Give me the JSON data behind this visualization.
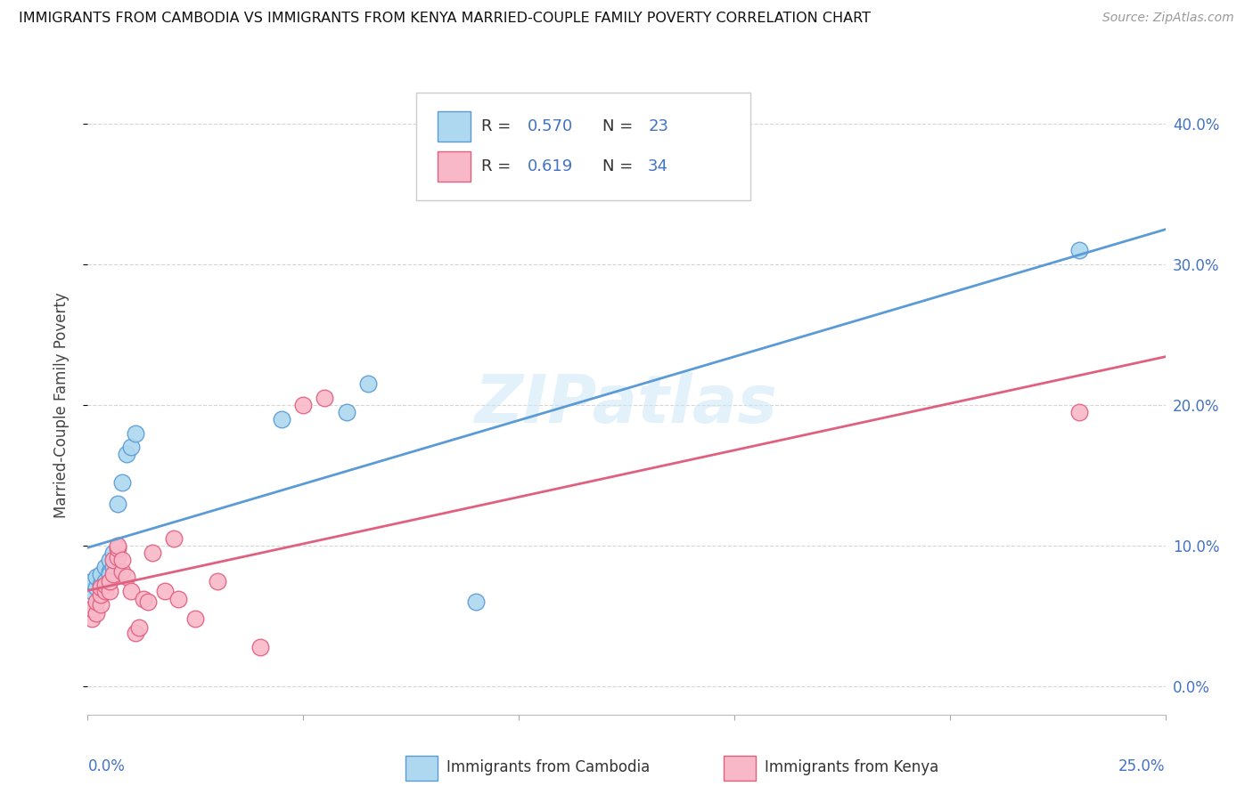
{
  "title": "IMMIGRANTS FROM CAMBODIA VS IMMIGRANTS FROM KENYA MARRIED-COUPLE FAMILY POVERTY CORRELATION CHART",
  "source": "Source: ZipAtlas.com",
  "ylabel": "Married-Couple Family Poverty",
  "watermark": "ZIPatlas",
  "legend_r1": "R = 0.570",
  "legend_n1": "N = 23",
  "legend_r2": "R = 0.619",
  "legend_n2": "N = 34",
  "legend_label1": "Immigrants from Cambodia",
  "legend_label2": "Immigrants from Kenya",
  "color_cambodia": "#add8f0",
  "color_kenya": "#f9b8c8",
  "color_line_cambodia": "#5b9bd5",
  "color_line_kenya": "#e06080",
  "color_text_blue": "#4472c4",
  "x_range": [
    0.0,
    0.25
  ],
  "y_range": [
    -0.02,
    0.42
  ],
  "ytick_vals": [
    0.0,
    0.1,
    0.2,
    0.3,
    0.4
  ],
  "ytick_labels": [
    "0.0%",
    "10.0%",
    "20.0%",
    "30.0%",
    "40.0%"
  ],
  "cambodia_x": [
    0.001,
    0.001,
    0.002,
    0.002,
    0.003,
    0.003,
    0.004,
    0.004,
    0.005,
    0.005,
    0.005,
    0.006,
    0.006,
    0.007,
    0.008,
    0.009,
    0.01,
    0.011,
    0.045,
    0.06,
    0.065,
    0.09,
    0.23
  ],
  "cambodia_y": [
    0.068,
    0.075,
    0.07,
    0.078,
    0.072,
    0.08,
    0.075,
    0.085,
    0.082,
    0.08,
    0.09,
    0.095,
    0.085,
    0.13,
    0.145,
    0.165,
    0.17,
    0.18,
    0.19,
    0.195,
    0.215,
    0.06,
    0.31
  ],
  "kenya_x": [
    0.001,
    0.001,
    0.002,
    0.002,
    0.003,
    0.003,
    0.003,
    0.004,
    0.004,
    0.005,
    0.005,
    0.006,
    0.006,
    0.007,
    0.007,
    0.007,
    0.008,
    0.008,
    0.009,
    0.01,
    0.011,
    0.012,
    0.013,
    0.014,
    0.015,
    0.018,
    0.02,
    0.021,
    0.025,
    0.03,
    0.04,
    0.05,
    0.055,
    0.23
  ],
  "kenya_y": [
    0.048,
    0.055,
    0.052,
    0.06,
    0.058,
    0.065,
    0.07,
    0.068,
    0.072,
    0.068,
    0.075,
    0.08,
    0.09,
    0.092,
    0.098,
    0.1,
    0.082,
    0.09,
    0.078,
    0.068,
    0.038,
    0.042,
    0.062,
    0.06,
    0.095,
    0.068,
    0.105,
    0.062,
    0.048,
    0.075,
    0.028,
    0.2,
    0.205,
    0.195
  ]
}
